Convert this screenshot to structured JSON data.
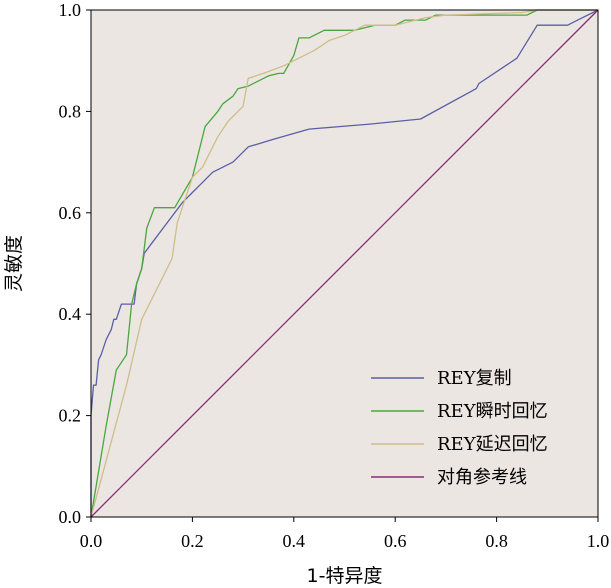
{
  "chart_data": {
    "type": "line",
    "xlabel": "1-特异度",
    "ylabel": "灵敏度",
    "xlim": [
      0,
      1
    ],
    "ylim": [
      0,
      1
    ],
    "x_ticks": [
      "0.0",
      "0.2",
      "0.4",
      "0.6",
      "0.8",
      "1.0"
    ],
    "y_ticks": [
      "0.0",
      "0.2",
      "0.4",
      "0.6",
      "0.8",
      "1.0"
    ],
    "grid": false,
    "legend_position": "bottom-right",
    "plot_background": "#ece6e2",
    "series": [
      {
        "name": "REY复制",
        "color": "#5a5fa6",
        "points": [
          [
            0,
            0
          ],
          [
            0,
            0.2
          ],
          [
            0.005,
            0.26
          ],
          [
            0.01,
            0.26
          ],
          [
            0.015,
            0.31
          ],
          [
            0.02,
            0.32
          ],
          [
            0.03,
            0.35
          ],
          [
            0.04,
            0.37
          ],
          [
            0.045,
            0.39
          ],
          [
            0.05,
            0.39
          ],
          [
            0.06,
            0.42
          ],
          [
            0.07,
            0.42
          ],
          [
            0.085,
            0.42
          ],
          [
            0.09,
            0.46
          ],
          [
            0.1,
            0.49
          ],
          [
            0.105,
            0.52
          ],
          [
            0.12,
            0.54
          ],
          [
            0.15,
            0.58
          ],
          [
            0.18,
            0.62
          ],
          [
            0.2,
            0.64
          ],
          [
            0.22,
            0.66
          ],
          [
            0.24,
            0.68
          ],
          [
            0.26,
            0.69
          ],
          [
            0.28,
            0.7
          ],
          [
            0.31,
            0.73
          ],
          [
            0.36,
            0.745
          ],
          [
            0.43,
            0.765
          ],
          [
            0.55,
            0.775
          ],
          [
            0.65,
            0.785
          ],
          [
            0.76,
            0.845
          ],
          [
            0.765,
            0.855
          ],
          [
            0.84,
            0.905
          ],
          [
            0.88,
            0.97
          ],
          [
            0.94,
            0.97
          ],
          [
            0.96,
            0.98
          ],
          [
            1,
            1
          ]
        ]
      },
      {
        "name": "REY瞬时回忆",
        "color": "#4aa63e",
        "points": [
          [
            0,
            0
          ],
          [
            0.03,
            0.18
          ],
          [
            0.05,
            0.29
          ],
          [
            0.07,
            0.32
          ],
          [
            0.08,
            0.42
          ],
          [
            0.09,
            0.46
          ],
          [
            0.1,
            0.49
          ],
          [
            0.11,
            0.57
          ],
          [
            0.125,
            0.61
          ],
          [
            0.165,
            0.61
          ],
          [
            0.2,
            0.67
          ],
          [
            0.21,
            0.71
          ],
          [
            0.225,
            0.77
          ],
          [
            0.25,
            0.8
          ],
          [
            0.26,
            0.815
          ],
          [
            0.28,
            0.83
          ],
          [
            0.29,
            0.845
          ],
          [
            0.31,
            0.85
          ],
          [
            0.35,
            0.87
          ],
          [
            0.37,
            0.875
          ],
          [
            0.38,
            0.875
          ],
          [
            0.4,
            0.91
          ],
          [
            0.41,
            0.945
          ],
          [
            0.43,
            0.945
          ],
          [
            0.46,
            0.96
          ],
          [
            0.52,
            0.96
          ],
          [
            0.56,
            0.97
          ],
          [
            0.6,
            0.97
          ],
          [
            0.62,
            0.98
          ],
          [
            0.66,
            0.98
          ],
          [
            0.68,
            0.99
          ],
          [
            0.86,
            0.99
          ],
          [
            0.88,
            1
          ],
          [
            1,
            1
          ]
        ]
      },
      {
        "name": "REY延迟回忆",
        "color": "#cdbe8a",
        "points": [
          [
            0,
            0
          ],
          [
            0.07,
            0.26
          ],
          [
            0.1,
            0.39
          ],
          [
            0.16,
            0.51
          ],
          [
            0.17,
            0.58
          ],
          [
            0.2,
            0.67
          ],
          [
            0.22,
            0.69
          ],
          [
            0.25,
            0.75
          ],
          [
            0.27,
            0.78
          ],
          [
            0.29,
            0.8
          ],
          [
            0.3,
            0.81
          ],
          [
            0.31,
            0.865
          ],
          [
            0.34,
            0.875
          ],
          [
            0.38,
            0.89
          ],
          [
            0.4,
            0.9
          ],
          [
            0.44,
            0.92
          ],
          [
            0.47,
            0.94
          ],
          [
            0.5,
            0.95
          ],
          [
            0.54,
            0.97
          ],
          [
            0.6,
            0.97
          ],
          [
            0.62,
            0.975
          ],
          [
            0.66,
            0.985
          ],
          [
            0.7,
            0.99
          ],
          [
            0.85,
            0.995
          ],
          [
            0.88,
            1
          ],
          [
            1,
            1
          ]
        ]
      },
      {
        "name": "对角参考线",
        "color": "#8b2a78",
        "points": [
          [
            0,
            0
          ],
          [
            1,
            1
          ]
        ]
      }
    ]
  }
}
